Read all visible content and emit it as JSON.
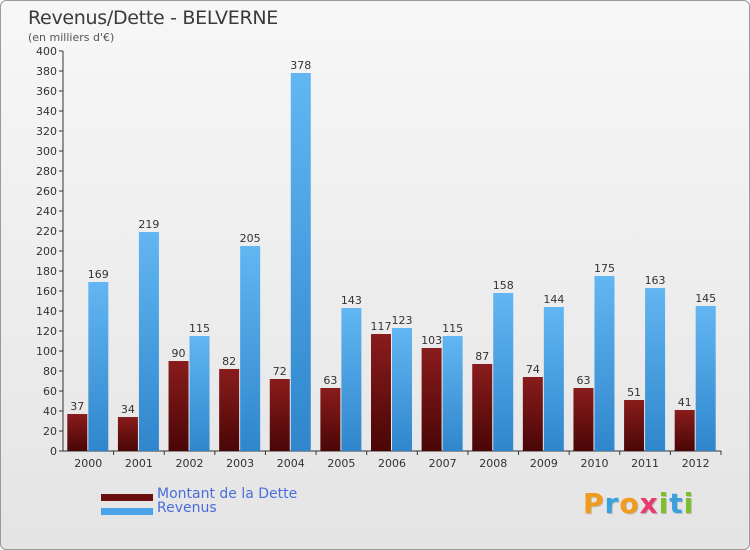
{
  "chart_data": {
    "type": "bar",
    "title": "Revenus/Dette - BELVERNE",
    "subtitle": "(en milliers d'€)",
    "categories": [
      "2000",
      "2001",
      "2002",
      "2003",
      "2004",
      "2005",
      "2006",
      "2007",
      "2008",
      "2009",
      "2010",
      "2011",
      "2012"
    ],
    "series": [
      {
        "name": "Montant de la Dette",
        "color": "#6b0f0f",
        "values": [
          37,
          34,
          90,
          82,
          72,
          63,
          117,
          103,
          87,
          74,
          63,
          51,
          41
        ]
      },
      {
        "name": "Revenus",
        "color": "#4aa3e8",
        "values": [
          169,
          219,
          115,
          205,
          378,
          143,
          123,
          115,
          158,
          144,
          175,
          163,
          145
        ]
      }
    ],
    "ylim": [
      0,
      400
    ],
    "ytick_step": 20,
    "xlabel": "",
    "ylabel": "",
    "grid": false,
    "legend": "bottom-left"
  },
  "logo": {
    "text": "Proxiti",
    "letters": [
      "P",
      "r",
      "o",
      "x",
      "i",
      "t",
      "i"
    ],
    "colors": [
      "#f29a1a",
      "#3aa0de",
      "#f29a1a",
      "#e83a6f",
      "#7cbf2a",
      "#3aa0de",
      "#7cbf2a"
    ]
  }
}
